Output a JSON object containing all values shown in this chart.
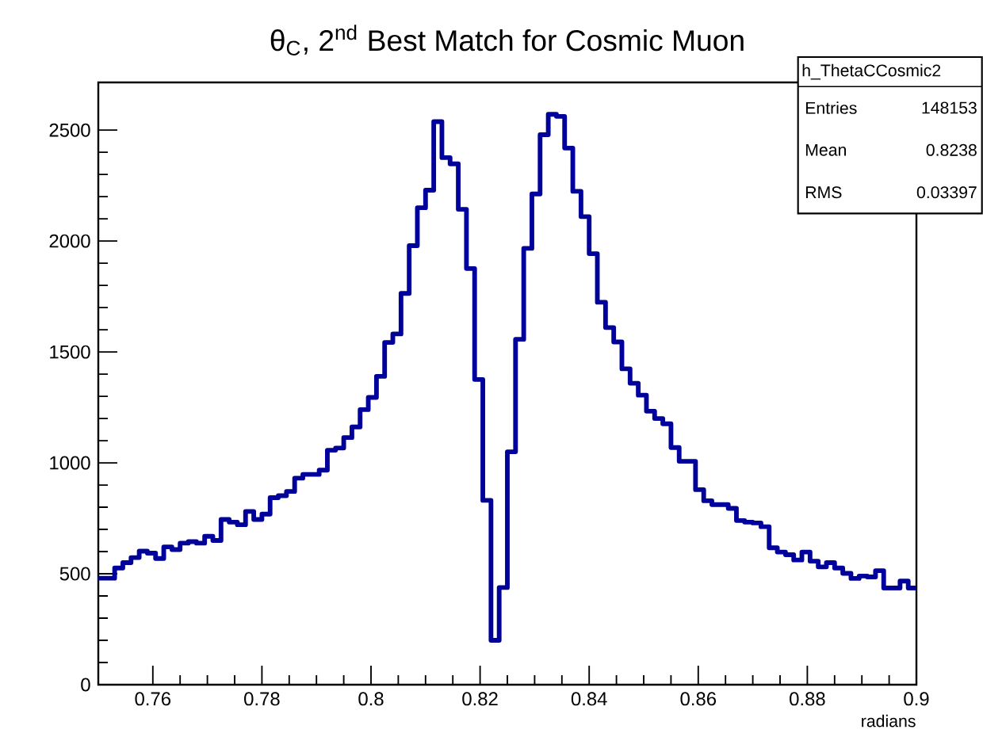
{
  "chart_data": {
    "type": "histogram",
    "title": "θ$_{C}$, 2$^{nd}$ Best Match for Cosmic Muon",
    "xlabel": "radians",
    "color": "#00009a",
    "bins": [
      0.75,
      0.7515,
      0.753,
      0.7545,
      0.756,
      0.7575,
      0.759,
      0.7605,
      0.762,
      0.7635,
      0.765,
      0.7665,
      0.768,
      0.7695,
      0.771,
      0.7725,
      0.774,
      0.7755,
      0.777,
      0.7785,
      0.78,
      0.7815,
      0.783,
      0.7845,
      0.786,
      0.7875,
      0.789,
      0.7905,
      0.792,
      0.7935,
      0.795,
      0.7965,
      0.798,
      0.7995,
      0.801,
      0.8025,
      0.804,
      0.8055,
      0.807,
      0.8085,
      0.81,
      0.8115,
      0.813,
      0.8145,
      0.816,
      0.8175,
      0.819,
      0.8205,
      0.822,
      0.8235,
      0.825,
      0.8265,
      0.828,
      0.8295,
      0.831,
      0.8325,
      0.834,
      0.8355,
      0.837,
      0.8385,
      0.84,
      0.8415,
      0.843,
      0.8445,
      0.846,
      0.8475,
      0.849,
      0.8505,
      0.852,
      0.8535,
      0.855,
      0.8565,
      0.858,
      0.8595,
      0.861,
      0.8625,
      0.864,
      0.8655,
      0.867,
      0.8685,
      0.87,
      0.8715,
      0.873,
      0.8745,
      0.876,
      0.8775,
      0.879,
      0.8805,
      0.882,
      0.8835,
      0.885,
      0.8865,
      0.888,
      0.8895,
      0.891,
      0.8925,
      0.894,
      0.8955,
      0.897,
      0.8985,
      0.9
    ],
    "values": [
      480,
      480,
      526,
      550,
      573,
      602,
      593,
      569,
      621,
      609,
      638,
      645,
      638,
      669,
      650,
      745,
      733,
      721,
      781,
      745,
      769,
      843,
      852,
      871,
      931,
      948,
      948,
      967,
      1057,
      1067,
      1114,
      1162,
      1240,
      1295,
      1390,
      1543,
      1581,
      1764,
      1979,
      2150,
      2229,
      2538,
      2376,
      2348,
      2143,
      1876,
      1376,
      831,
      200,
      438,
      1050,
      1557,
      1967,
      2212,
      2479,
      2571,
      2562,
      2419,
      2224,
      2110,
      1943,
      1724,
      1610,
      1545,
      1424,
      1359,
      1305,
      1233,
      1200,
      1176,
      1069,
      1007,
      1007,
      879,
      829,
      812,
      812,
      795,
      740,
      733,
      729,
      712,
      617,
      598,
      586,
      562,
      598,
      557,
      531,
      550,
      526,
      502,
      479,
      490,
      486,
      514,
      436,
      436,
      467,
      436
    ],
    "xlim": [
      0.75,
      0.9
    ],
    "ylim": [
      0,
      2715
    ],
    "xticks": [
      0.76,
      0.78,
      0.8,
      0.82,
      0.84,
      0.86,
      0.88,
      0.9
    ],
    "yticks": [
      0,
      500,
      1000,
      1500,
      2000,
      2500
    ],
    "annotations": [
      "h_ThetaCCosmic2",
      "Entries",
      "148153",
      "Mean",
      "0.8238",
      "RMS",
      "0.03397"
    ]
  }
}
